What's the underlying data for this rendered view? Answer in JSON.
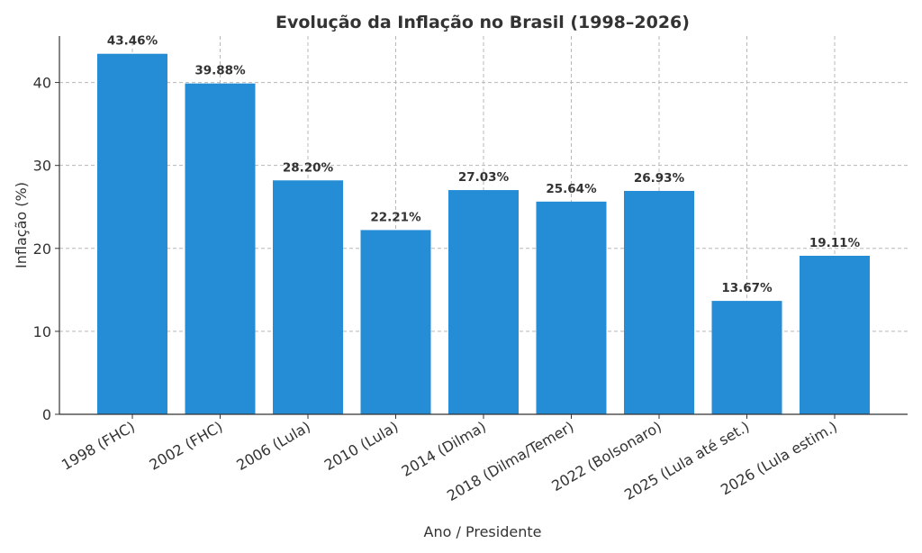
{
  "chart_data": {
    "type": "bar",
    "title": "Evolução da Inflação no Brasil (1998–2026)",
    "xlabel": "Ano / Presidente",
    "ylabel": "Inflação (%)",
    "categories": [
      "1998 (FHC)",
      "2002 (FHC)",
      "2006 (Lula)",
      "2010 (Lula)",
      "2014 (Dilma)",
      "2018 (Dilma/Temer)",
      "2022 (Bolsonaro)",
      "2025 (Lula até set.)",
      "2026 (Lula estim.)"
    ],
    "values": [
      43.46,
      39.88,
      28.2,
      22.21,
      27.03,
      25.64,
      26.93,
      13.67,
      19.11
    ],
    "data_labels": [
      "43.46%",
      "39.88%",
      "28.20%",
      "22.21%",
      "27.03%",
      "25.64%",
      "26.93%",
      "13.67%",
      "19.11%"
    ],
    "ylim": [
      0,
      45.6
    ],
    "yticks": [
      0,
      10,
      20,
      30,
      40
    ],
    "grid": true,
    "bar_color": "#258dd6"
  }
}
